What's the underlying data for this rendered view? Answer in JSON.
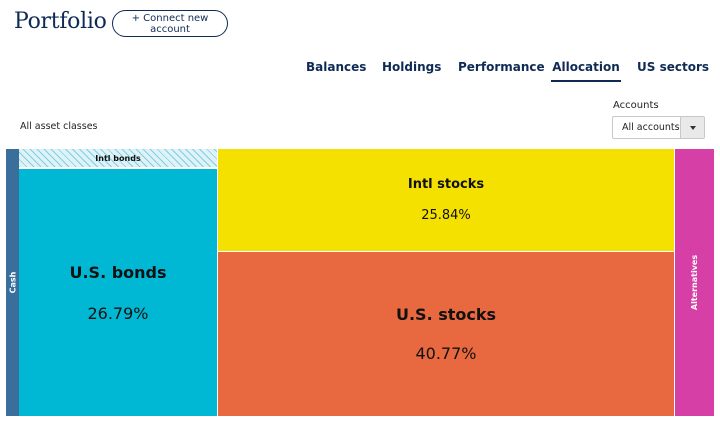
{
  "header": {
    "title": "Portfolio",
    "connect_button": "+ Connect new account"
  },
  "tabs": [
    {
      "label": "Balances",
      "active": false
    },
    {
      "label": "Holdings",
      "active": false
    },
    {
      "label": "Performance",
      "active": false
    },
    {
      "label": "Allocation",
      "active": true
    },
    {
      "label": "US sectors",
      "active": false
    }
  ],
  "filters": {
    "asset_classes": "All asset classes",
    "accounts_label": "Accounts",
    "accounts_value": "All accounts"
  },
  "treemap": {
    "cells": [
      {
        "name": "Cash",
        "percent": "",
        "color": "#3a6e9b"
      },
      {
        "name": "Intl bonds",
        "percent": "",
        "color": "#7fcfe3"
      },
      {
        "name": "U.S. bonds",
        "percent": "26.79%",
        "color": "#00b8d4"
      },
      {
        "name": "Intl stocks",
        "percent": "25.84%",
        "color": "#f5e100"
      },
      {
        "name": "U.S. stocks",
        "percent": "40.77%",
        "color": "#e8683f"
      },
      {
        "name": "Alternatives",
        "percent": "",
        "color": "#d63fa6"
      }
    ]
  }
}
